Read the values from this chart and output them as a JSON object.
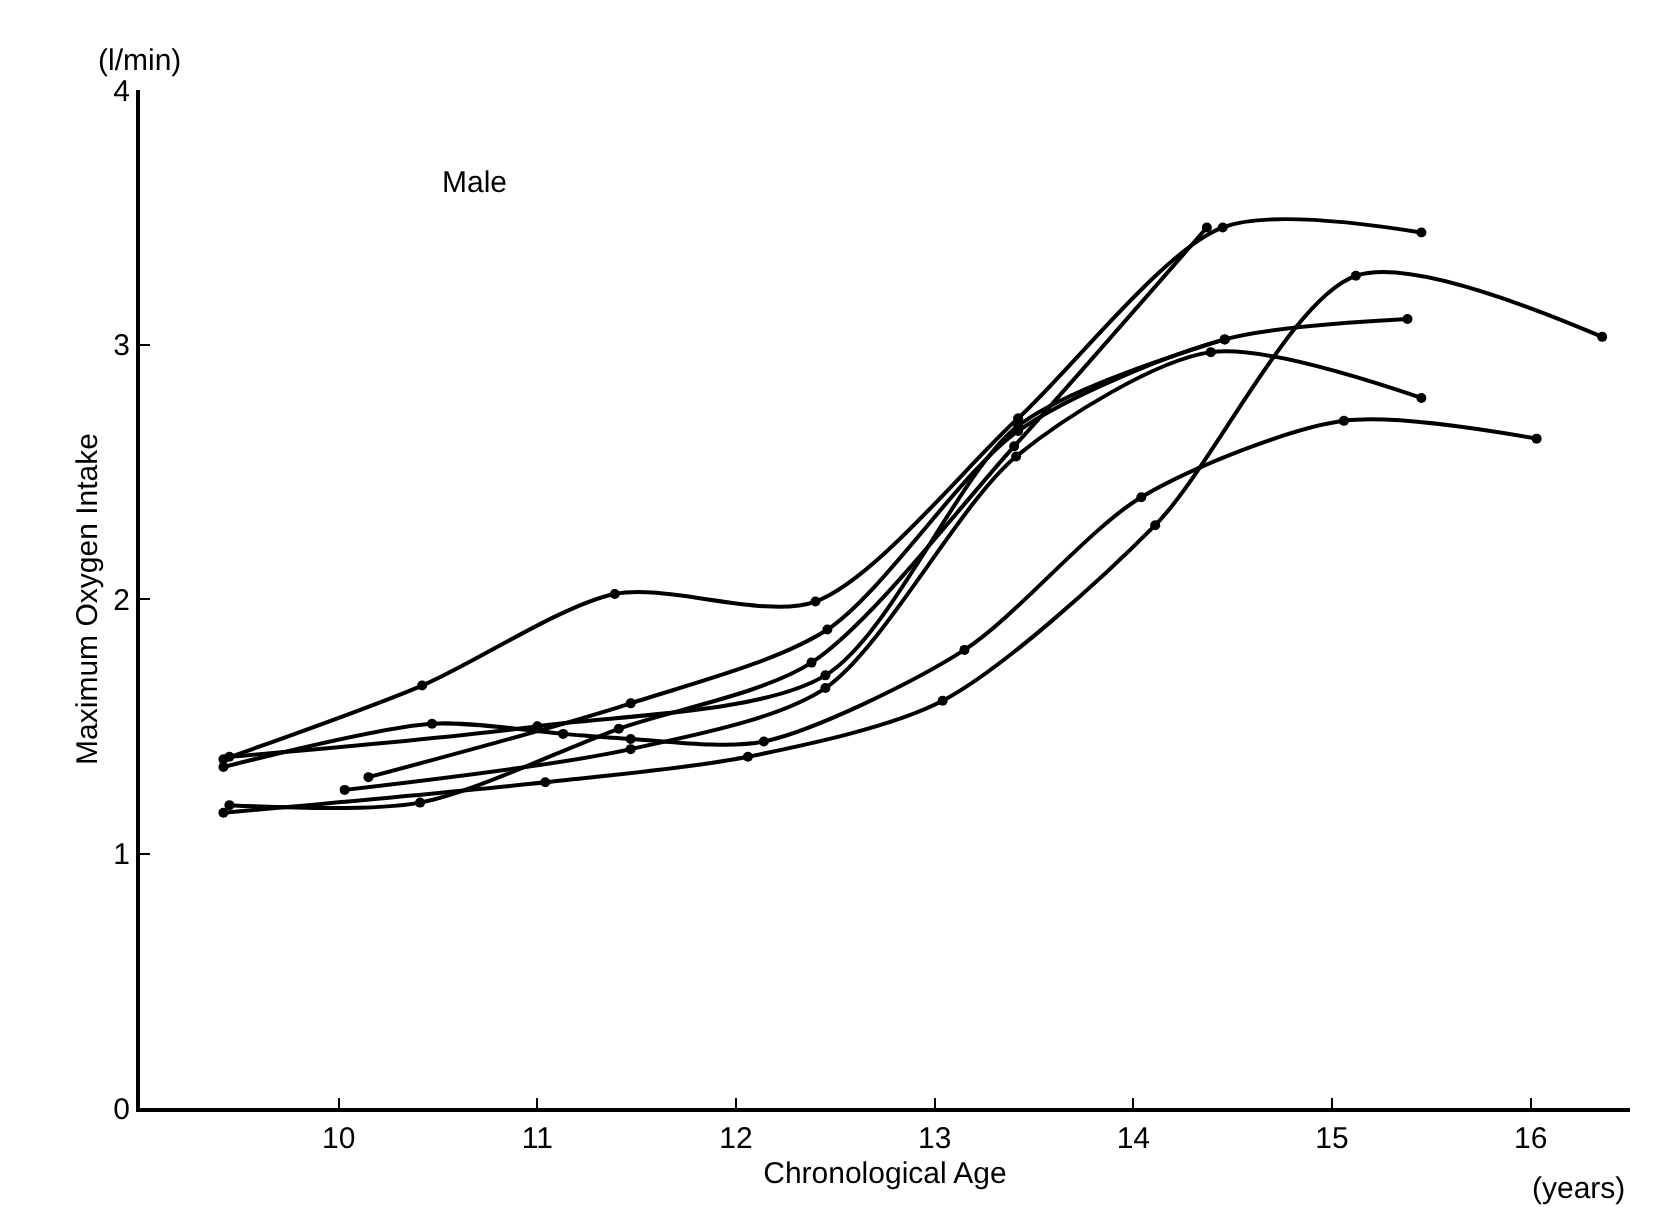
{
  "chart_data": {
    "type": "line",
    "xlabel": "Chronological Age",
    "ylabel": "Maximum Oxygen Intake",
    "annotations": [
      "Male",
      "(l/min)",
      "(years)"
    ],
    "xlim": [
      9.0,
      16.5
    ],
    "ylim": [
      0,
      4
    ],
    "xticks": [
      10,
      11,
      12,
      13,
      14,
      15,
      16
    ],
    "yticks": [
      0,
      1,
      2,
      3,
      4
    ],
    "marker": "circle",
    "line_style": "solid",
    "series": [
      {
        "color": "#000000",
        "x": [
          9.42,
          10.42,
          11.39,
          12.4,
          13.42,
          14.45,
          15.45
        ],
        "values": [
          1.37,
          1.66,
          2.02,
          1.99,
          2.71,
          3.46,
          3.44
        ]
      },
      {
        "color": "#000000",
        "x": [
          9.42,
          10.47,
          11.13,
          11.47,
          12.14,
          13.15,
          14.04,
          15.06,
          16.03
        ],
        "values": [
          1.34,
          1.51,
          1.47,
          1.45,
          1.44,
          1.8,
          2.4,
          2.7,
          2.63
        ]
      },
      {
        "color": "#000000",
        "x": [
          10.15,
          11.47,
          12.46,
          13.42,
          14.46,
          15.38
        ],
        "values": [
          1.3,
          1.59,
          1.88,
          2.66,
          3.02,
          3.1
        ]
      },
      {
        "color": "#000000",
        "x": [
          9.42,
          11.04,
          12.06,
          13.04,
          14.11,
          15.12,
          16.36
        ],
        "values": [
          1.16,
          1.28,
          1.38,
          1.6,
          2.29,
          3.27,
          3.03
        ]
      },
      {
        "color": "#000000",
        "x": [
          9.45,
          10.41,
          11.41,
          12.38,
          13.4,
          14.37
        ],
        "values": [
          1.19,
          1.2,
          1.49,
          1.75,
          2.6,
          3.46
        ]
      },
      {
        "color": "#000000",
        "x": [
          10.03,
          11.47,
          12.45,
          13.41,
          14.39,
          15.45
        ],
        "values": [
          1.25,
          1.41,
          1.65,
          2.56,
          2.97,
          2.79
        ]
      },
      {
        "color": "#000000",
        "x": [
          9.45,
          11.0,
          12.45,
          13.42,
          14.46
        ],
        "values": [
          1.38,
          1.5,
          1.7,
          2.68,
          3.02
        ]
      }
    ]
  }
}
